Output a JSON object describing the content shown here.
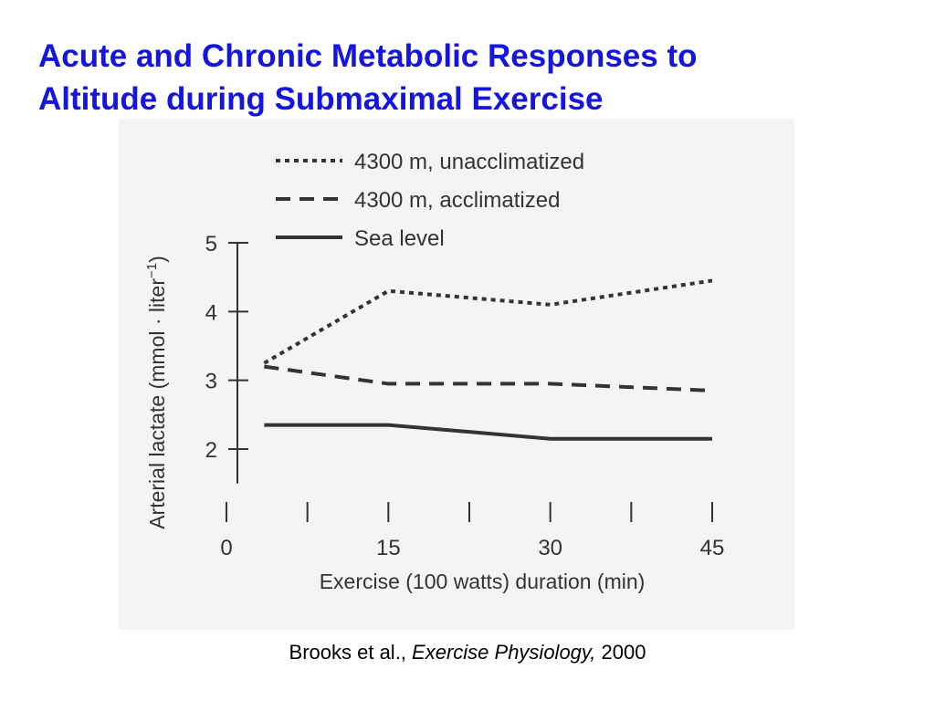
{
  "slide": {
    "title_line1": "Acute and Chronic Metabolic Responses to",
    "title_line2": "Altitude during Submaximal Exercise"
  },
  "citation": {
    "authors": "Brooks et al.,",
    "book": "Exercise Physiology,",
    "year": "2000"
  },
  "colors": {
    "title": "#1515e0",
    "ink": "#333333",
    "figure_background": "#f4f4f4"
  },
  "chart_data": {
    "type": "line",
    "xlabel": "Exercise (100 watts) duration (min)",
    "ylabel": "Arterial lactate (mmol · liter",
    "ylabel_superscript": "−1",
    "ylabel_close": ")",
    "xlim": [
      0,
      45
    ],
    "ylim": [
      1.5,
      5
    ],
    "x_ticks": [
      0,
      15,
      30,
      45
    ],
    "x_tick_labels": [
      "0",
      "15",
      "30",
      "45"
    ],
    "y_ticks": [
      2,
      3,
      4,
      5
    ],
    "y_tick_labels": [
      "2",
      "3",
      "4",
      "5"
    ],
    "grid": false,
    "legend_position": "top-left",
    "series": [
      {
        "name": "4300 m, unacclimatized",
        "style": "dotted",
        "x": [
          3.5,
          15,
          30,
          45
        ],
        "y": [
          3.25,
          4.3,
          4.1,
          4.45
        ]
      },
      {
        "name": "4300 m, acclimatized",
        "style": "dashed",
        "x": [
          3.5,
          15,
          30,
          45
        ],
        "y": [
          3.2,
          2.95,
          2.95,
          2.85
        ]
      },
      {
        "name": "Sea level",
        "style": "solid",
        "x": [
          3.5,
          15,
          30,
          45
        ],
        "y": [
          2.35,
          2.35,
          2.15,
          2.15
        ]
      }
    ]
  }
}
